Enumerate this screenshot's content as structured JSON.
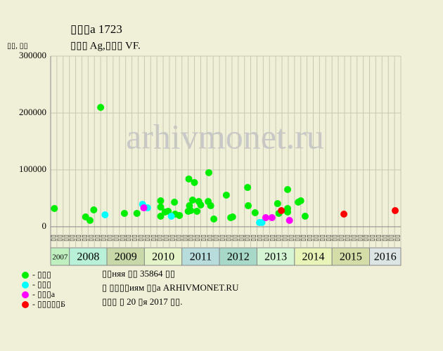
{
  "chart_data": {
    "type": "scatter",
    "title": "▯▯▯а 1723",
    "subtitle": "▯▯▯ Ag,▯▯▯ VF.",
    "y_label": "▯▯, ▯▯",
    "watermark": "arhivmonet.ru",
    "xlim": [
      0,
      56
    ],
    "ylim": [
      0,
      300000
    ],
    "yticks": [
      0,
      100000,
      200000,
      300000
    ],
    "grid": true,
    "column_labels": [
      "▯▯",
      "▯▯",
      "▯▯",
      "▯▯",
      "▯▯",
      "▯▯",
      "▯▯",
      "▯▯",
      "▯▯",
      "▯▯",
      "▯▯",
      "▯▯",
      "▯▯",
      "▯▯",
      "▯▯",
      "▯▯",
      "▯▯",
      "▯▯",
      "▯▯",
      "▯▯",
      "▯▯",
      "▯▯",
      "▯▯",
      "▯▯",
      "▯▯",
      "▯▯",
      "▯▯",
      "▯▯",
      "▯▯",
      "▯▯",
      "▯▯",
      "▯▯",
      "▯▯",
      "▯▯",
      "▯▯",
      "▯▯",
      "▯▯",
      "▯▯",
      "▯▯",
      "▯▯",
      "▯▯",
      "▯▯",
      "▯▯",
      "▯▯",
      "▯▯",
      "▯▯",
      "▯▯",
      "▯▯",
      "▯▯",
      "▯▯",
      "▯▯",
      "▯▯",
      "▯▯",
      "▯▯",
      "▯▯",
      "▯▯"
    ],
    "year_bands": [
      {
        "label": "2007",
        "start": 0,
        "end": 3,
        "color": "#c0f0c0"
      },
      {
        "label": "2008",
        "start": 3,
        "end": 9,
        "color": "#b8f0d8"
      },
      {
        "label": "2009",
        "start": 9,
        "end": 15,
        "color": "#c8d8a8"
      },
      {
        "label": "2010",
        "start": 15,
        "end": 21,
        "color": "#e4f4c8"
      },
      {
        "label": "2011",
        "start": 21,
        "end": 27,
        "color": "#b8dcdc"
      },
      {
        "label": "2012",
        "start": 27,
        "end": 33,
        "color": "#a8d8c8"
      },
      {
        "label": "2013",
        "start": 33,
        "end": 39,
        "color": "#d4f4d4"
      },
      {
        "label": "2014",
        "start": 39,
        "end": 45,
        "color": "#e8f4b8"
      },
      {
        "label": "2015",
        "start": 45,
        "end": 51,
        "color": "#d4dca8"
      },
      {
        "label": "2016",
        "start": 51,
        "end": 56,
        "color": "#dce4e4"
      }
    ],
    "series": [
      {
        "name": "- ▯▯▯",
        "color": "#00ee00",
        "x": [
          0.6,
          5.6,
          6.3,
          6.9,
          8.0,
          11.8,
          13.8,
          17.6,
          17.6,
          17.6,
          18.3,
          18.8,
          19.8,
          19.9,
          20.6,
          22.1,
          22.4,
          22.7,
          23.0,
          23.4,
          23.7,
          24.0,
          25.3,
          25.2,
          25.6,
          26.1,
          28.1,
          28.8,
          29.1,
          31.5,
          31.6,
          32.7,
          36.3,
          36.5,
          37.9,
          37.9,
          37.9,
          39.6,
          40.0,
          40.7,
          22.2,
          22.0
        ],
        "values": [
          32100,
          17300,
          11100,
          29600,
          209900,
          23500,
          23500,
          45700,
          34600,
          18500,
          25900,
          27200,
          43200,
          22200,
          19800,
          84000,
          28400,
          46900,
          77800,
          27200,
          44400,
          38300,
          95100,
          44400,
          37000,
          13600,
          55600,
          16000,
          17300,
          69100,
          37000,
          24700,
          40700,
          23500,
          32100,
          25900,
          65400,
          43200,
          45700,
          18500,
          37000,
          27200
        ]
      },
      {
        "name": "- ▯▯▯",
        "color": "#00ffff",
        "x": [
          8.7,
          14.7,
          15.5,
          19.3,
          33.4,
          33.8
        ],
        "values": [
          21000,
          39500,
          33300,
          18500,
          7400,
          7400
        ]
      },
      {
        "name": "- ▯▯▯а",
        "color": "#ff00ff",
        "x": [
          14.9,
          34.4,
          35.4,
          38.2
        ],
        "values": [
          33300,
          16000,
          16000,
          11100
        ]
      },
      {
        "name": "- ▯▯▯▯▯Б",
        "color": "#ff0000",
        "x": [
          36.9,
          46.9,
          55.1
        ],
        "values": [
          28400,
          22200,
          28400
        ]
      }
    ],
    "notes": [
      "▯▯няя ▯▯ 35864 ▯▯",
      "▯ ▯▯▯▯иям ▯▯а ARHIVMONET.RU",
      "▯▯▯ ▯ 20 ▯я 2017 ▯▯."
    ]
  }
}
